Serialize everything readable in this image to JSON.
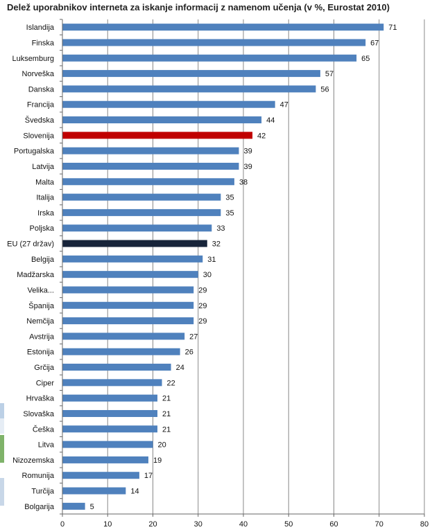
{
  "chart_data": {
    "type": "bar",
    "orientation": "horizontal",
    "title": "Delež uporabnikov interneta za iskanje informacij z namenom učenja (v %, Eurostat 2010)",
    "xlim": [
      0,
      80
    ],
    "x_ticks": [
      0,
      10,
      20,
      30,
      40,
      50,
      60,
      70,
      80
    ],
    "grid": "vertical",
    "colors": {
      "default": "#4F81BD",
      "highlight": "#C00000",
      "eu": "#17243A",
      "grid": "#888888"
    },
    "bars": [
      {
        "label": "Islandija",
        "value": 71,
        "color_key": "default"
      },
      {
        "label": "Finska",
        "value": 67,
        "color_key": "default"
      },
      {
        "label": "Luksemburg",
        "value": 65,
        "color_key": "default"
      },
      {
        "label": "Norveška",
        "value": 57,
        "color_key": "default"
      },
      {
        "label": "Danska",
        "value": 56,
        "color_key": "default"
      },
      {
        "label": "Francija",
        "value": 47,
        "color_key": "default"
      },
      {
        "label": "Švedska",
        "value": 44,
        "color_key": "default"
      },
      {
        "label": "Slovenija",
        "value": 42,
        "color_key": "highlight"
      },
      {
        "label": "Portugalska",
        "value": 39,
        "color_key": "default"
      },
      {
        "label": "Latvija",
        "value": 39,
        "color_key": "default"
      },
      {
        "label": "Malta",
        "value": 38,
        "color_key": "default"
      },
      {
        "label": "Italija",
        "value": 35,
        "color_key": "default"
      },
      {
        "label": "Irska",
        "value": 35,
        "color_key": "default"
      },
      {
        "label": "Poljska",
        "value": 33,
        "color_key": "default"
      },
      {
        "label": "EU (27 držav)",
        "value": 32,
        "color_key": "eu"
      },
      {
        "label": "Belgija",
        "value": 31,
        "color_key": "default"
      },
      {
        "label": "Madžarska",
        "value": 30,
        "color_key": "default"
      },
      {
        "label": "Velika...",
        "value": 29,
        "color_key": "default"
      },
      {
        "label": "Španija",
        "value": 29,
        "color_key": "default"
      },
      {
        "label": "Nemčija",
        "value": 29,
        "color_key": "default"
      },
      {
        "label": "Avstrija",
        "value": 27,
        "color_key": "default"
      },
      {
        "label": "Estonija",
        "value": 26,
        "color_key": "default"
      },
      {
        "label": "Grčija",
        "value": 24,
        "color_key": "default"
      },
      {
        "label": "Ciper",
        "value": 22,
        "color_key": "default"
      },
      {
        "label": "Hrvaška",
        "value": 21,
        "color_key": "default"
      },
      {
        "label": "Slovaška",
        "value": 21,
        "color_key": "default"
      },
      {
        "label": "Češka",
        "value": 21,
        "color_key": "default"
      },
      {
        "label": "Litva",
        "value": 20,
        "color_key": "default"
      },
      {
        "label": "Nizozemska",
        "value": 19,
        "color_key": "default"
      },
      {
        "label": "Romunija",
        "value": 17,
        "color_key": "default"
      },
      {
        "label": "Turčija",
        "value": 14,
        "color_key": "default"
      },
      {
        "label": "Bolgarija",
        "value": 5,
        "color_key": "default"
      }
    ]
  }
}
